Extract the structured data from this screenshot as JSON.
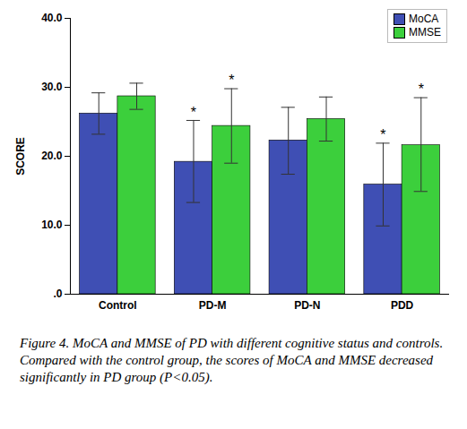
{
  "chart_data": {
    "type": "bar",
    "caption": "Figure 4. MoCA and MMSE of PD with different cognitive status and controls. Compared with the control group, the scores of MoCA and MMSE decreased significantly in PD group (P<0.05).",
    "y_label": "SCORE",
    "categories": [
      "Control",
      "PD-M",
      "PD-N",
      "PDD"
    ],
    "series": [
      {
        "name": "MoCA",
        "color": "#3f4fb4",
        "values": [
          26.2,
          19.2,
          22.3,
          15.9
        ],
        "error_low": [
          23.2,
          13.3,
          17.4,
          9.9
        ],
        "error_high": [
          29.2,
          25.2,
          27.1,
          21.9
        ]
      },
      {
        "name": "MMSE",
        "color": "#3ccf3c",
        "values": [
          28.7,
          24.4,
          25.4,
          21.6
        ],
        "error_low": [
          26.8,
          19.0,
          22.2,
          14.9
        ],
        "error_high": [
          30.6,
          29.8,
          28.6,
          28.5
        ]
      }
    ],
    "annotations": [
      {
        "text": "*",
        "category": "PD-M",
        "series": "MoCA"
      },
      {
        "text": "*",
        "category": "PD-M",
        "series": "MMSE"
      },
      {
        "text": "*",
        "category": "PDD",
        "series": "MoCA"
      },
      {
        "text": "*",
        "category": "PDD",
        "series": "MMSE"
      }
    ],
    "ylim": [
      0,
      40
    ],
    "yticks": [
      {
        "value": 0,
        "label": ".0"
      },
      {
        "value": 10,
        "label": "10.0"
      },
      {
        "value": 20,
        "label": "20.0"
      },
      {
        "value": 30,
        "label": "30.0"
      },
      {
        "value": 40,
        "label": "40.0"
      }
    ],
    "legend": "top-right",
    "grid": false
  }
}
